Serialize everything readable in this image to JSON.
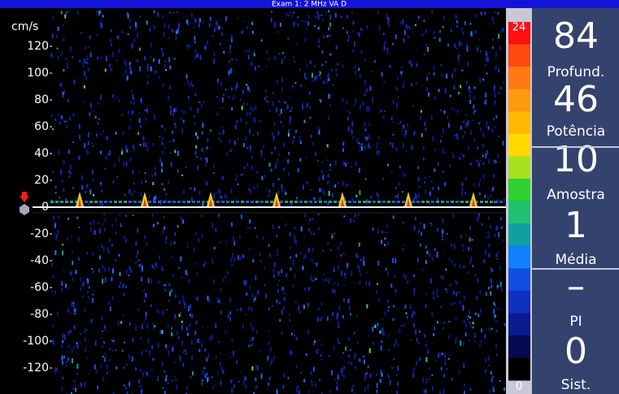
{
  "header": {
    "title": "Exam 1: 2 MHz  VA D"
  },
  "axis": {
    "unit": "cm/s",
    "ticks": [
      120,
      100,
      80,
      60,
      40,
      20,
      0,
      -20,
      -40,
      -60,
      -80,
      -100,
      -120
    ]
  },
  "color_scale": {
    "max_label": "24",
    "min_label": "0",
    "colors": [
      "#ff1010",
      "#ff4a10",
      "#ff7a10",
      "#ff9a10",
      "#ffb800",
      "#ffd800",
      "#a8e020",
      "#30d030",
      "#20c070",
      "#10a0a0",
      "#1080ff",
      "#1050e0",
      "#1030c0",
      "#0a1a90",
      "#050a50",
      "#000000"
    ]
  },
  "panel": {
    "items": [
      {
        "value": "84",
        "label": "Profund."
      },
      {
        "value": "46",
        "label": "Potência"
      },
      {
        "value": "10",
        "label": "Amostra"
      },
      {
        "value": "1",
        "label": "Média"
      },
      {
        "value": "–",
        "label": "PI"
      },
      {
        "value": "0",
        "label": "Sist."
      }
    ]
  }
}
